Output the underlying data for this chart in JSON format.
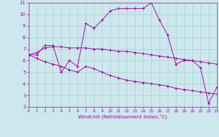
{
  "bg_color": "#cce8ec",
  "grid_color": "#aacccc",
  "line_color": "#aa00aa",
  "xlabel": "Windchill (Refroidissement éolien,°C)",
  "ylim": [
    2,
    11
  ],
  "xlim": [
    0,
    23
  ],
  "yticks": [
    2,
    3,
    4,
    5,
    6,
    7,
    8,
    9,
    10,
    11
  ],
  "xticks": [
    0,
    1,
    2,
    3,
    4,
    5,
    6,
    7,
    8,
    9,
    10,
    11,
    12,
    13,
    14,
    15,
    16,
    17,
    18,
    19,
    20,
    21,
    22,
    23
  ],
  "series1_x": [
    0,
    1,
    2,
    3,
    4,
    5,
    6,
    7,
    8,
    9,
    10,
    11,
    12,
    13,
    14,
    15,
    16,
    17,
    18,
    19,
    20,
    21,
    22,
    23
  ],
  "series1_y": [
    6.5,
    6.5,
    7.3,
    7.3,
    5.0,
    6.0,
    5.5,
    9.2,
    8.8,
    9.5,
    10.3,
    10.5,
    10.5,
    10.5,
    10.5,
    11.0,
    9.5,
    8.2,
    5.7,
    6.0,
    6.0,
    5.4,
    2.3,
    3.7
  ],
  "series2_x": [
    0,
    1,
    2,
    3,
    4,
    5,
    6,
    7,
    8,
    9,
    10,
    11,
    12,
    13,
    14,
    15,
    16,
    17,
    18,
    19,
    20,
    21,
    22,
    23
  ],
  "series2_y": [
    6.5,
    6.7,
    7.1,
    7.2,
    7.2,
    7.1,
    7.1,
    7.1,
    7.0,
    7.0,
    6.9,
    6.8,
    6.8,
    6.7,
    6.6,
    6.5,
    6.4,
    6.3,
    6.2,
    6.1,
    6.0,
    5.9,
    5.8,
    5.7
  ],
  "series3_x": [
    0,
    1,
    2,
    3,
    4,
    5,
    6,
    7,
    8,
    9,
    10,
    11,
    12,
    13,
    14,
    15,
    16,
    17,
    18,
    19,
    20,
    21,
    22,
    23
  ],
  "series3_y": [
    6.5,
    6.2,
    5.9,
    5.7,
    5.5,
    5.2,
    5.0,
    5.5,
    5.3,
    5.0,
    4.7,
    4.5,
    4.3,
    4.2,
    4.1,
    4.0,
    3.9,
    3.8,
    3.6,
    3.5,
    3.4,
    3.3,
    3.2,
    3.1
  ],
  "label_fontsize": 5,
  "tick_fontsize": 5
}
